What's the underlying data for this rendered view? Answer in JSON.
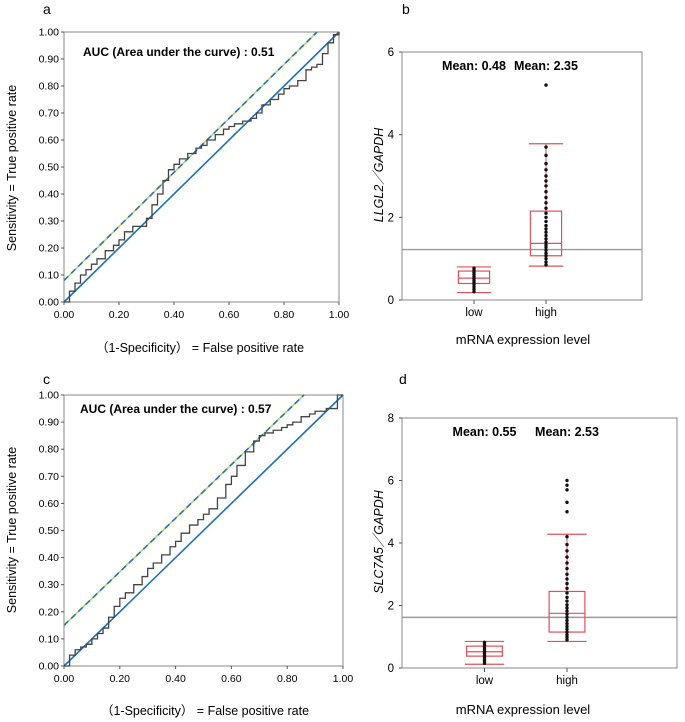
{
  "chart_data": [
    {
      "panel": "a",
      "type": "line",
      "title": "",
      "xlabel": "（1-Specificity） = False positive rate",
      "ylabel": "Sensitivity = True positive rate",
      "xlim": [
        0,
        1
      ],
      "ylim": [
        0,
        1
      ],
      "xticks": [
        "0.00",
        "0.20",
        "0.40",
        "0.60",
        "0.80",
        "1.00"
      ],
      "yticks": [
        "0.00",
        "0.10",
        "0.20",
        "0.30",
        "0.40",
        "0.50",
        "0.60",
        "0.70",
        "0.80",
        "0.90",
        "1.00"
      ],
      "annotation": "AUC (Area under the curve) : 0.51",
      "series": [
        {
          "name": "ROC",
          "style": "step",
          "x": [
            0,
            0.02,
            0.04,
            0.06,
            0.08,
            0.1,
            0.12,
            0.15,
            0.18,
            0.2,
            0.22,
            0.25,
            0.28,
            0.3,
            0.32,
            0.34,
            0.36,
            0.38,
            0.4,
            0.42,
            0.45,
            0.48,
            0.5,
            0.52,
            0.55,
            0.58,
            0.6,
            0.62,
            0.65,
            0.68,
            0.7,
            0.72,
            0.75,
            0.78,
            0.8,
            0.82,
            0.85,
            0.88,
            0.9,
            0.92,
            0.94,
            0.96,
            0.98,
            1.0
          ],
          "y": [
            0,
            0.04,
            0.07,
            0.1,
            0.12,
            0.14,
            0.16,
            0.19,
            0.21,
            0.23,
            0.26,
            0.28,
            0.28,
            0.31,
            0.36,
            0.4,
            0.45,
            0.49,
            0.51,
            0.53,
            0.55,
            0.57,
            0.58,
            0.6,
            0.62,
            0.64,
            0.65,
            0.66,
            0.67,
            0.68,
            0.7,
            0.73,
            0.75,
            0.77,
            0.79,
            0.8,
            0.82,
            0.86,
            0.87,
            0.88,
            0.92,
            0.96,
            0.99,
            1.0
          ]
        },
        {
          "name": "Reference",
          "style": "solid",
          "x": [
            0,
            1
          ],
          "y": [
            0,
            1
          ]
        },
        {
          "name": "Upper bound",
          "style": "dashed",
          "x": [
            0,
            0.92
          ],
          "y": [
            0.08,
            1.0
          ]
        }
      ]
    },
    {
      "panel": "b",
      "type": "box",
      "xlabel": "mRNA expression level",
      "ylabel": "LLGL2／GAPDH",
      "ylim": [
        0,
        6
      ],
      "yticks": [
        "0",
        "2",
        "4",
        "6"
      ],
      "reference_line": 1.22,
      "categories": [
        "low",
        "high"
      ],
      "means": [
        "Mean: 0.48",
        "Mean: 2.35"
      ],
      "boxes": [
        {
          "name": "low",
          "whisker_low": 0.18,
          "q1": 0.4,
          "median": 0.53,
          "q3": 0.7,
          "whisker_high": 0.8,
          "points": [
            0.2,
            0.26,
            0.32,
            0.38,
            0.43,
            0.48,
            0.52,
            0.57,
            0.62,
            0.67,
            0.72,
            0.77
          ]
        },
        {
          "name": "high",
          "whisker_low": 0.82,
          "q1": 1.07,
          "median": 1.37,
          "q3": 2.15,
          "whisker_high": 3.78,
          "points": [
            0.85,
            0.92,
            1.0,
            1.07,
            1.13,
            1.2,
            1.27,
            1.33,
            1.4,
            1.48,
            1.56,
            1.64,
            1.72,
            1.8,
            1.9,
            2.0,
            2.1,
            2.22,
            2.35,
            2.48,
            2.62,
            2.76,
            2.88,
            3.0,
            3.15,
            3.3,
            3.5,
            3.7,
            5.2
          ]
        }
      ]
    },
    {
      "panel": "c",
      "type": "line",
      "title": "",
      "xlabel": "（1-Specificity） = False positive rate",
      "ylabel": "Sensitivity = True positive rate",
      "xlim": [
        0,
        1
      ],
      "ylim": [
        0,
        1
      ],
      "xticks": [
        "0.00",
        "0.20",
        "0.40",
        "0.60",
        "0.80",
        "1.00"
      ],
      "yticks": [
        "0.00",
        "0.10",
        "0.20",
        "0.30",
        "0.40",
        "0.50",
        "0.60",
        "0.70",
        "0.80",
        "0.90",
        "1.00"
      ],
      "annotation": "AUC (Area under the curve) : 0.57",
      "series": [
        {
          "name": "ROC",
          "style": "step",
          "x": [
            0,
            0.02,
            0.04,
            0.06,
            0.08,
            0.1,
            0.12,
            0.14,
            0.16,
            0.18,
            0.2,
            0.22,
            0.25,
            0.28,
            0.3,
            0.32,
            0.35,
            0.38,
            0.4,
            0.42,
            0.45,
            0.48,
            0.5,
            0.52,
            0.55,
            0.58,
            0.6,
            0.62,
            0.65,
            0.68,
            0.7,
            0.72,
            0.75,
            0.78,
            0.8,
            0.82,
            0.85,
            0.88,
            0.9,
            0.92,
            0.94,
            0.96,
            0.98,
            1.0
          ],
          "y": [
            0,
            0.04,
            0.06,
            0.07,
            0.08,
            0.1,
            0.12,
            0.14,
            0.18,
            0.22,
            0.25,
            0.27,
            0.3,
            0.33,
            0.36,
            0.38,
            0.41,
            0.44,
            0.46,
            0.49,
            0.52,
            0.54,
            0.56,
            0.58,
            0.62,
            0.67,
            0.7,
            0.74,
            0.79,
            0.83,
            0.85,
            0.86,
            0.87,
            0.88,
            0.89,
            0.9,
            0.92,
            0.93,
            0.94,
            0.94,
            0.95,
            0.95,
            1.0,
            1.0
          ]
        },
        {
          "name": "Reference",
          "style": "solid",
          "x": [
            0,
            1
          ],
          "y": [
            0,
            1
          ]
        },
        {
          "name": "Upper bound",
          "style": "dashed",
          "x": [
            0,
            0.86
          ],
          "y": [
            0.15,
            1.0
          ]
        }
      ]
    },
    {
      "panel": "d",
      "type": "box",
      "xlabel": "mRNA expression level",
      "ylabel": "SLC7A5／GAPDH",
      "ylim": [
        0,
        8
      ],
      "yticks": [
        "0",
        "2",
        "4",
        "6",
        "8"
      ],
      "reference_line": 1.62,
      "categories": [
        "low",
        "high"
      ],
      "means": [
        "Mean: 0.55",
        "Mean: 2.53"
      ],
      "boxes": [
        {
          "name": "low",
          "whisker_low": 0.12,
          "q1": 0.38,
          "median": 0.52,
          "q3": 0.7,
          "whisker_high": 0.85,
          "points": [
            0.15,
            0.22,
            0.28,
            0.34,
            0.4,
            0.46,
            0.52,
            0.58,
            0.64,
            0.7,
            0.76,
            0.82
          ]
        },
        {
          "name": "high",
          "whisker_low": 0.85,
          "q1": 1.15,
          "median": 1.75,
          "q3": 2.45,
          "whisker_high": 4.28,
          "points": [
            0.9,
            0.98,
            1.06,
            1.15,
            1.24,
            1.33,
            1.42,
            1.52,
            1.62,
            1.72,
            1.82,
            1.92,
            2.02,
            2.14,
            2.26,
            2.4,
            2.55,
            2.7,
            2.85,
            3.0,
            3.18,
            3.36,
            3.55,
            3.75,
            3.95,
            4.2,
            5.0,
            5.3,
            5.7,
            5.85,
            6.0
          ]
        }
      ]
    }
  ]
}
